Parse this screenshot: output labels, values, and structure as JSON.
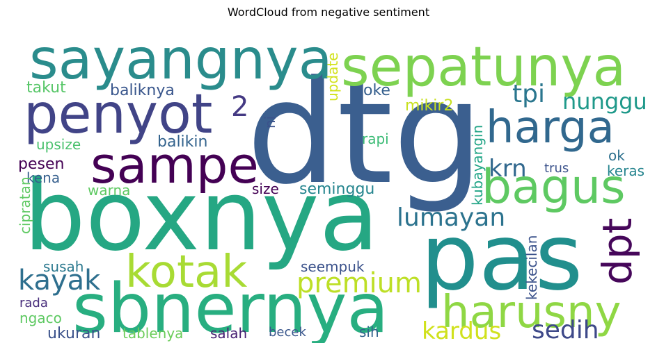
{
  "title": "WordCloud from negative sentiment",
  "words": [
    {
      "text": "dtg",
      "color": "#3b5f8f",
      "rotated": false
    },
    {
      "text": "boxnya",
      "color": "#25a783",
      "rotated": false
    },
    {
      "text": "pas",
      "color": "#218f8d",
      "rotated": false
    },
    {
      "text": "sbnernya",
      "color": "#28ae80",
      "rotated": false
    },
    {
      "text": "sayangnya",
      "color": "#2a8c8c",
      "rotated": false
    },
    {
      "text": "sepatunya",
      "color": "#7dd250",
      "rotated": false
    },
    {
      "text": "penyot",
      "color": "#414487",
      "rotated": false
    },
    {
      "text": "sampe",
      "color": "#440154",
      "rotated": false
    },
    {
      "text": "harga",
      "color": "#31688e",
      "rotated": false
    },
    {
      "text": "bagus",
      "color": "#5ec962",
      "rotated": false
    },
    {
      "text": "kotak",
      "color": "#a8db34",
      "rotated": false
    },
    {
      "text": "harusny",
      "color": "#8fd744",
      "rotated": false
    },
    {
      "text": "dpt",
      "color": "#46075a",
      "rotated": true
    },
    {
      "text": "premium",
      "color": "#bddf26",
      "rotated": false
    },
    {
      "text": "lumayan",
      "color": "#2c738e",
      "rotated": false
    },
    {
      "text": "kayak",
      "color": "#2e6f8e",
      "rotated": false
    },
    {
      "text": "kardus",
      "color": "#d0e11c",
      "rotated": false
    },
    {
      "text": "sedih",
      "color": "#3e4989",
      "rotated": false
    },
    {
      "text": "tpi",
      "color": "#2a768e",
      "rotated": false
    },
    {
      "text": "nunggu",
      "color": "#1f998a",
      "rotated": false
    },
    {
      "text": "krn",
      "color": "#31688e",
      "rotated": false
    },
    {
      "text": "2",
      "color": "#443983",
      "rotated": false
    },
    {
      "text": "takut",
      "color": "#56c667",
      "rotated": false
    },
    {
      "text": "baliknya",
      "color": "#39568c",
      "rotated": false
    },
    {
      "text": "oke",
      "color": "#355f8d",
      "rotated": false
    },
    {
      "text": "mikir2",
      "color": "#c8e020",
      "rotated": false
    },
    {
      "text": "ni",
      "color": "#3b528b",
      "rotated": true
    },
    {
      "text": "update",
      "color": "#d2e21b",
      "rotated": true
    },
    {
      "text": "upsize",
      "color": "#4ac16d",
      "rotated": false
    },
    {
      "text": "balikin",
      "color": "#33638d",
      "rotated": false
    },
    {
      "text": "rapi",
      "color": "#3bbb75",
      "rotated": false
    },
    {
      "text": "pesen",
      "color": "#440154",
      "rotated": false
    },
    {
      "text": "kena",
      "color": "#355f8d",
      "rotated": false
    },
    {
      "text": "warna",
      "color": "#5ec962",
      "rotated": false
    },
    {
      "text": "size",
      "color": "#440154",
      "rotated": false
    },
    {
      "text": "seminggu",
      "color": "#25858e",
      "rotated": false
    },
    {
      "text": "kubayangin",
      "color": "#20a486",
      "rotated": true
    },
    {
      "text": "trus",
      "color": "#3b528b",
      "rotated": false
    },
    {
      "text": "ok",
      "color": "#2d708e",
      "rotated": false
    },
    {
      "text": "keras",
      "color": "#25848e",
      "rotated": false
    },
    {
      "text": "cipratan",
      "color": "#5ec962",
      "rotated": true
    },
    {
      "text": "susah",
      "color": "#2a788e",
      "rotated": false
    },
    {
      "text": "seempuk",
      "color": "#3b528b",
      "rotated": false
    },
    {
      "text": "kekecilan",
      "color": "#3b528b",
      "rotated": true
    },
    {
      "text": "rada",
      "color": "#472d7b",
      "rotated": false
    },
    {
      "text": "ngaco",
      "color": "#5ec962",
      "rotated": false
    },
    {
      "text": "ukuran",
      "color": "#3b528b",
      "rotated": false
    },
    {
      "text": "tablenya",
      "color": "#6ccd5a",
      "rotated": false
    },
    {
      "text": "salah",
      "color": "#482173",
      "rotated": false
    },
    {
      "text": "becek",
      "color": "#39568c",
      "rotated": false
    },
    {
      "text": "sih",
      "color": "#33638d",
      "rotated": false
    }
  ]
}
